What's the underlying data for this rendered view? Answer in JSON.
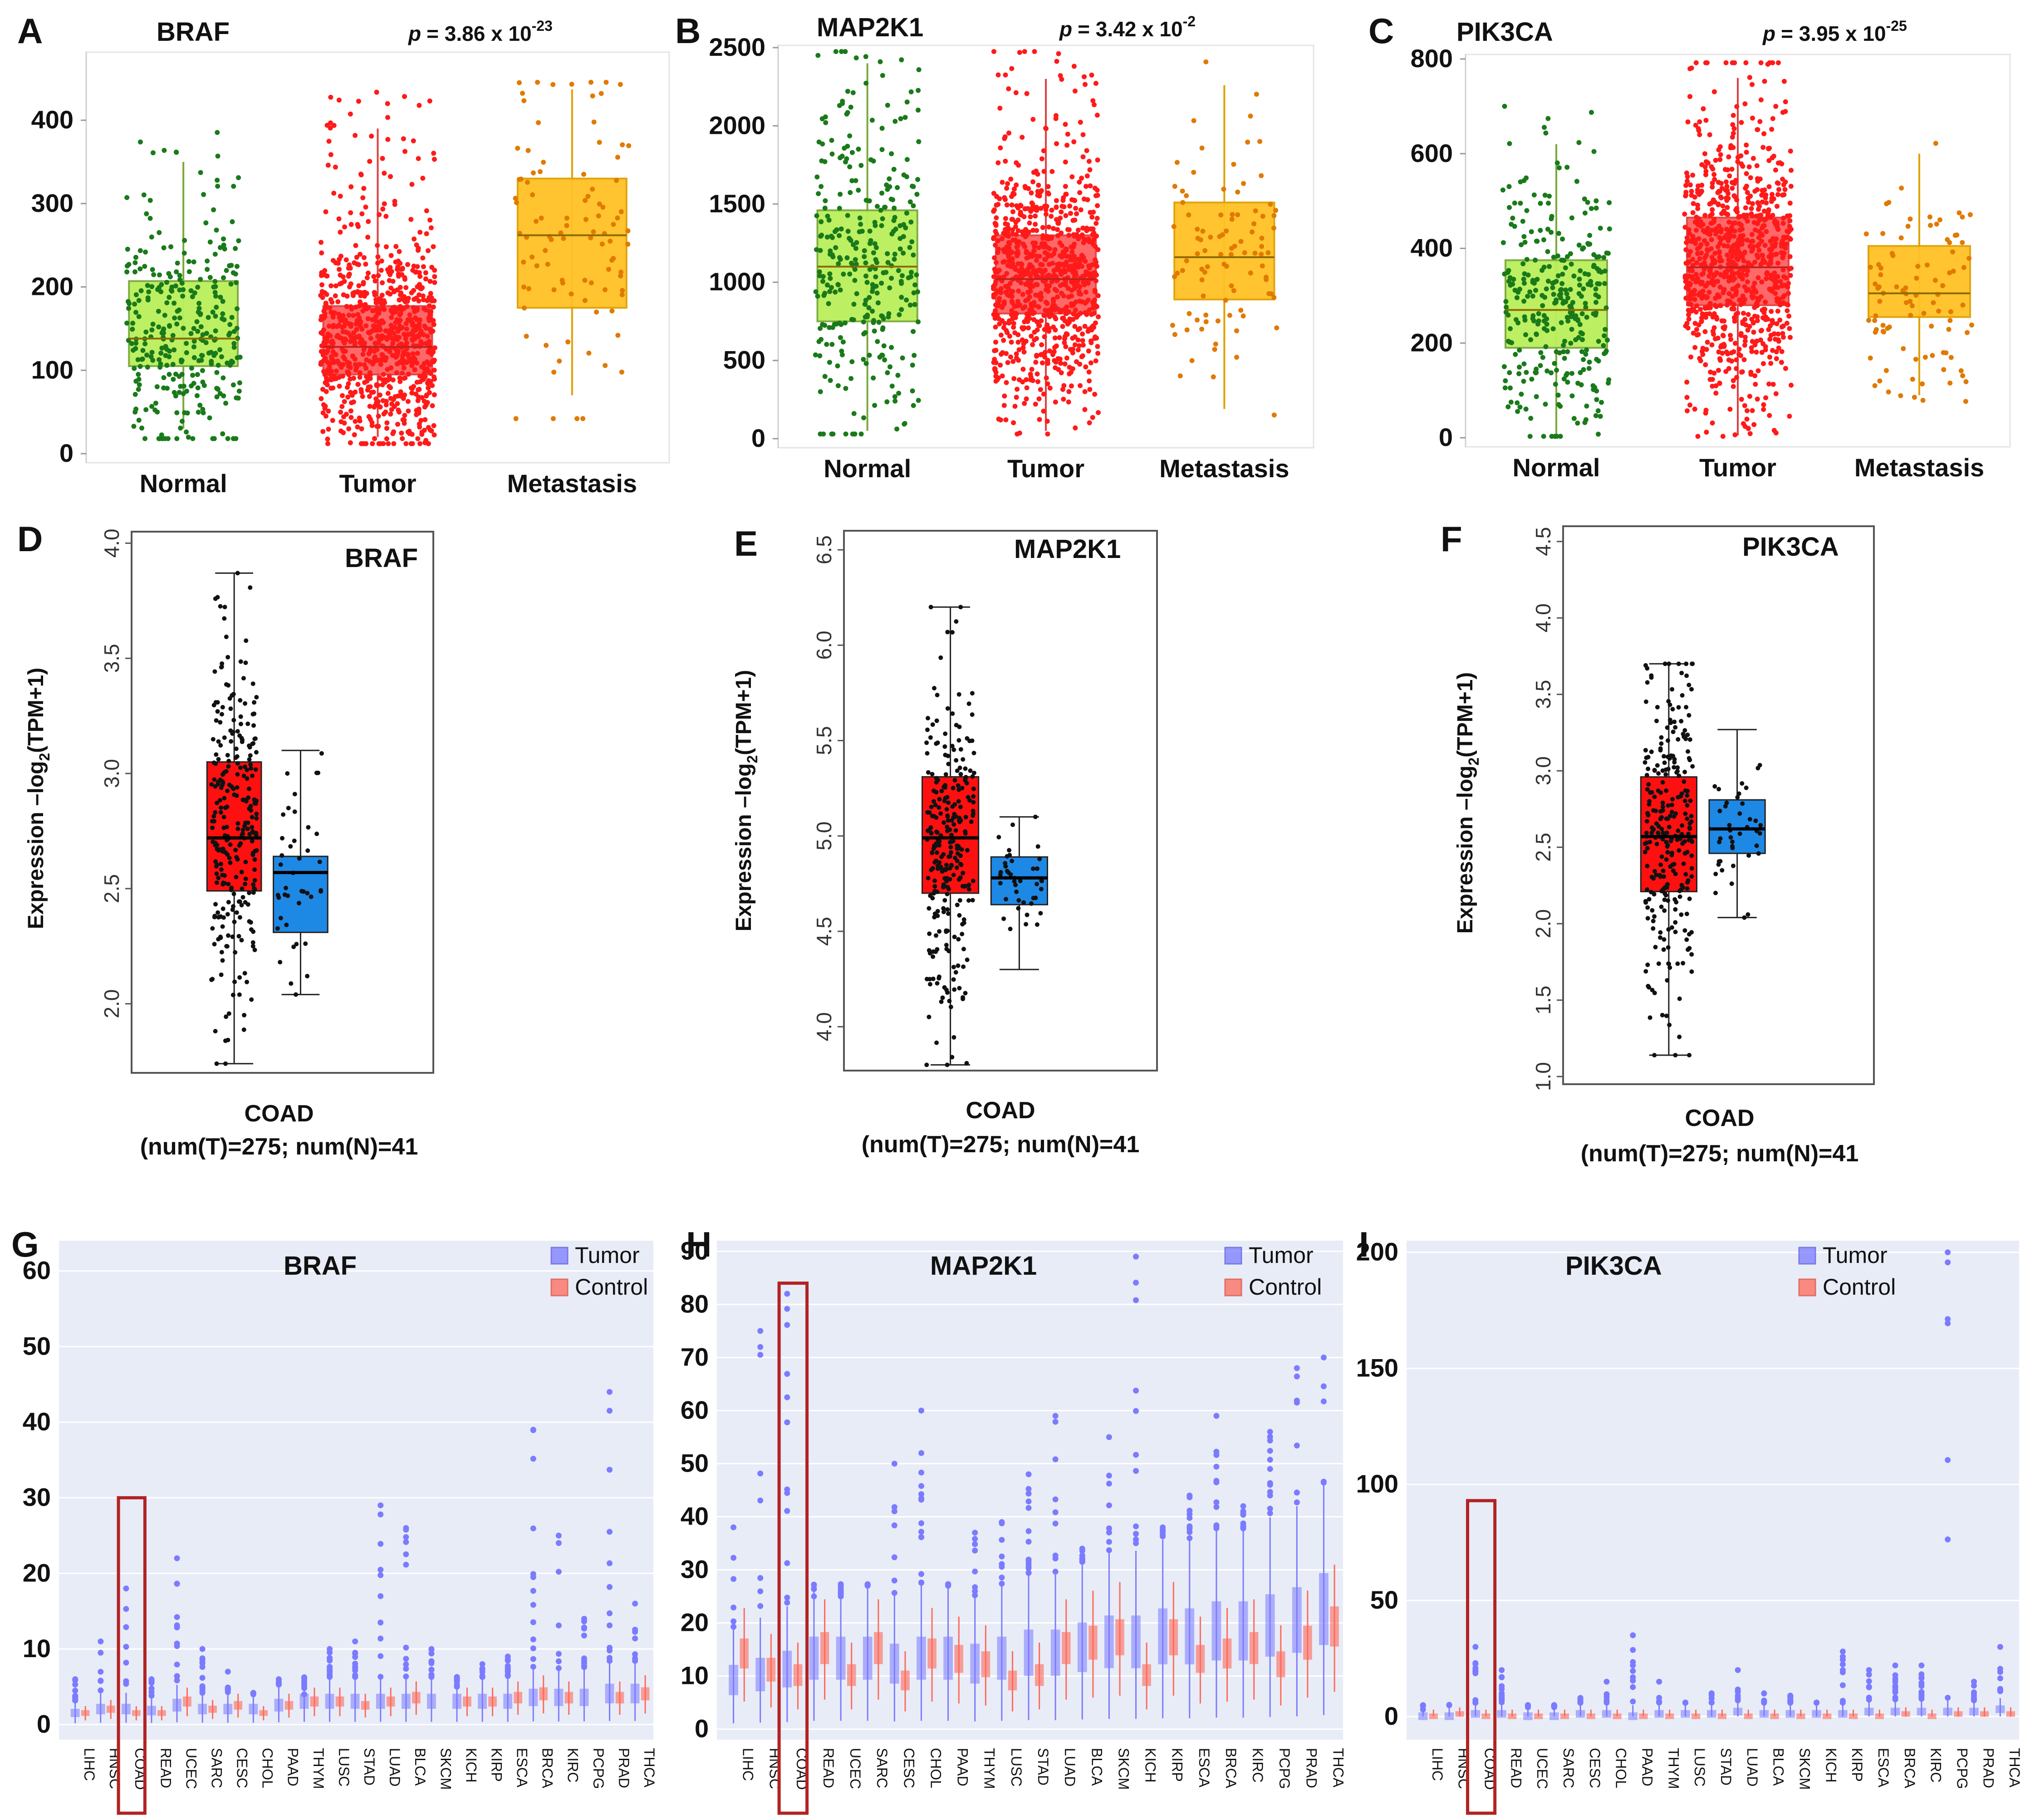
{
  "figure": {
    "colors": {
      "normal_box": "#b9f05a",
      "normal_dots": "#1a7a1a",
      "tumor_box": "#ff6060",
      "tumor_dots": "#ff1a1a",
      "metastasis_box": "#ffc125",
      "metastasis_dots": "#e07a00",
      "gepia_tumor": "#ff1010",
      "gepia_normal": "#1e88e5",
      "pan_tumor": "#7b7bff",
      "pan_control": "#ff6a5a",
      "pan_background": "#e8ecf7",
      "highlight": "#b22222"
    }
  },
  "chart_data": [
    {
      "panel": "A",
      "type": "box",
      "title": "BRAF",
      "p_prefix": "p",
      "p_value": "= 3.86 x 10",
      "p_exponent": "-23",
      "categories": [
        "Normal",
        "Tumor",
        "Metastasis"
      ],
      "ylim": [
        0,
        450
      ],
      "yticks": [
        0,
        100,
        200,
        300,
        400
      ],
      "boxes": [
        {
          "q1": 105,
          "median": 138,
          "q3": 207,
          "lower": 30,
          "upper": 350,
          "n_points": 320
        },
        {
          "q1": 95,
          "median": 128,
          "q3": 177,
          "lower": 20,
          "upper": 390,
          "n_points": 900
        },
        {
          "q1": 175,
          "median": 262,
          "q3": 330,
          "lower": 70,
          "upper": 437,
          "n_points": 95
        }
      ]
    },
    {
      "panel": "B",
      "type": "box",
      "title": "MAP2K1",
      "p_prefix": "p",
      "p_value": "= 3.42 x 10",
      "p_exponent": "-2",
      "categories": [
        "Normal",
        "Tumor",
        "Metastasis"
      ],
      "ylim": [
        0,
        2500
      ],
      "yticks": [
        0,
        500,
        1000,
        1500,
        2000,
        2500
      ],
      "boxes": [
        {
          "q1": 750,
          "median": 1100,
          "q3": 1460,
          "lower": 50,
          "upper": 2400,
          "n_points": 320
        },
        {
          "q1": 800,
          "median": 1020,
          "q3": 1300,
          "lower": 50,
          "upper": 2300,
          "n_points": 900
        },
        {
          "q1": 890,
          "median": 1160,
          "q3": 1510,
          "lower": 190,
          "upper": 2260,
          "n_points": 95
        }
      ]
    },
    {
      "panel": "C",
      "type": "box",
      "title": "PIK3CA",
      "p_prefix": "p",
      "p_value": "= 3.95 x 10",
      "p_exponent": "-25",
      "categories": [
        "Normal",
        "Tumor",
        "Metastasis"
      ],
      "ylim": [
        0,
        800
      ],
      "yticks": [
        0,
        200,
        400,
        600,
        800
      ],
      "boxes": [
        {
          "q1": 190,
          "median": 270,
          "q3": 375,
          "lower": 5,
          "upper": 620,
          "n_points": 320
        },
        {
          "q1": 280,
          "median": 360,
          "q3": 465,
          "lower": 5,
          "upper": 760,
          "n_points": 900
        },
        {
          "q1": 255,
          "median": 305,
          "q3": 405,
          "lower": 90,
          "upper": 600,
          "n_points": 95
        }
      ]
    },
    {
      "panel": "D",
      "type": "box",
      "title": "BRAF",
      "ylabel_main": "Expression –log",
      "ylabel_sub": "2",
      "ylabel_end": "(TPM+1)",
      "xlabel": "COAD",
      "cohort": "(num(T)=275; num(N)=41",
      "ylim": [
        1.7,
        4.05
      ],
      "yticks": [
        "2.0",
        "2.5",
        "3.0",
        "3.5",
        "4.0"
      ],
      "boxes": [
        {
          "group": "Tumor",
          "q1": 2.49,
          "median": 2.72,
          "q3": 3.05,
          "lower": 1.74,
          "upper": 3.87,
          "n_points": 275
        },
        {
          "group": "Normal",
          "q1": 2.31,
          "median": 2.57,
          "q3": 2.64,
          "lower": 2.04,
          "upper": 3.1,
          "n_points": 41
        }
      ]
    },
    {
      "panel": "E",
      "type": "box",
      "title": "MAP2K1",
      "ylabel_main": "Expression –log",
      "ylabel_sub": "2",
      "ylabel_end": "(TPM+1)",
      "xlabel": "COAD",
      "cohort": "(num(T)=275; num(N)=41",
      "ylim": [
        3.77,
        6.6
      ],
      "yticks": [
        "4.0",
        "4.5",
        "5.0",
        "5.5",
        "6.0",
        "6.5"
      ],
      "boxes": [
        {
          "group": "Tumor",
          "q1": 4.7,
          "median": 4.99,
          "q3": 5.31,
          "lower": 3.8,
          "upper": 6.2,
          "n_points": 275
        },
        {
          "group": "Normal",
          "q1": 4.64,
          "median": 4.78,
          "q3": 4.89,
          "lower": 4.3,
          "upper": 5.1,
          "n_points": 41
        }
      ]
    },
    {
      "panel": "F",
      "type": "box",
      "title": "PIK3CA",
      "ylabel_main": "Expression –log",
      "ylabel_sub": "2",
      "ylabel_end": "(TPM+1)",
      "xlabel": "COAD",
      "cohort": "(num(T)=275; num(N)=41",
      "ylim": [
        0.95,
        4.6
      ],
      "yticks": [
        "1.0",
        "1.5",
        "2.0",
        "2.5",
        "3.0",
        "3.5",
        "4.0",
        "4.5"
      ],
      "boxes": [
        {
          "group": "Tumor",
          "q1": 2.21,
          "median": 2.57,
          "q3": 2.96,
          "lower": 1.14,
          "upper": 3.7,
          "n_points": 275
        },
        {
          "group": "Normal",
          "q1": 2.46,
          "median": 2.62,
          "q3": 2.81,
          "lower": 2.04,
          "upper": 3.27,
          "n_points": 41
        }
      ]
    },
    {
      "panel": "G",
      "type": "box",
      "title": "BRAF",
      "legend": [
        "Tumor",
        "Control"
      ],
      "highlight": "COAD",
      "categories": [
        "LIHC",
        "HNSC",
        "COAD",
        "READ",
        "UCEC",
        "SARC",
        "CESC",
        "CHOL",
        "PAAD",
        "THYM",
        "LUSC",
        "STAD",
        "LUAD",
        "BLCA",
        "SKCM",
        "KICH",
        "KIRP",
        "ESCA",
        "BRCA",
        "KIRC",
        "PCPG",
        "PRAD",
        "THCA"
      ],
      "ylim": [
        -2,
        64
      ],
      "yticks": [
        0,
        10,
        20,
        30,
        40,
        50,
        60
      ],
      "tumor_median": [
        1.5,
        2,
        2,
        1.8,
        2.5,
        2,
        2,
        2,
        2.5,
        3,
        3,
        3,
        3,
        3,
        3,
        3,
        3,
        3,
        3.5,
        3.5,
        3.5,
        4,
        4
      ],
      "control_median": [
        1.5,
        2,
        1.5,
        1.5,
        3,
        2,
        2.5,
        1.5,
        2.5,
        3,
        3,
        2.5,
        3,
        3.5,
        0,
        3,
        3,
        3.5,
        4,
        3.5,
        0,
        3.5,
        4
      ],
      "tumor_max": [
        6,
        11,
        18,
        6,
        22,
        10,
        7,
        4,
        6,
        4,
        10,
        11,
        29,
        26,
        10,
        5,
        8,
        9,
        39,
        25,
        14,
        44,
        16
      ]
    },
    {
      "panel": "H",
      "type": "box",
      "title": "MAP2K1",
      "legend": [
        "Tumor",
        "Control"
      ],
      "highlight": "COAD",
      "categories": [
        "LIHC",
        "HNSC",
        "COAD",
        "READ",
        "UCEC",
        "SARC",
        "CESC",
        "CHOL",
        "PAAD",
        "THYM",
        "LUSC",
        "STAD",
        "LUAD",
        "BLCA",
        "SKCM",
        "KICH",
        "KIRP",
        "ESCA",
        "BRCA",
        "KIRC",
        "PCPG",
        "PRAD",
        "THCA"
      ],
      "ylim": [
        -2,
        92
      ],
      "yticks": [
        0,
        10,
        20,
        30,
        40,
        50,
        60,
        70,
        80,
        90
      ],
      "tumor_median": [
        9,
        10,
        11,
        13,
        13,
        13,
        12,
        13,
        13,
        12,
        13,
        14,
        14,
        15,
        16,
        16,
        17,
        17,
        18,
        18,
        19,
        20,
        22
      ],
      "control_median": [
        14,
        11,
        10,
        15,
        10,
        15,
        9,
        14,
        13,
        12,
        9,
        10,
        15,
        16,
        17,
        10,
        17,
        13,
        14,
        15,
        12,
        16,
        19
      ],
      "tumor_max": [
        38,
        75,
        82,
        25,
        25,
        27,
        50,
        60,
        27,
        37,
        39,
        48,
        59,
        34,
        55,
        89,
        38,
        44,
        59,
        42,
        56,
        68,
        70
      ]
    },
    {
      "panel": "I",
      "type": "box",
      "title": "PIK3CA",
      "legend": [
        "Tumor",
        "Control"
      ],
      "highlight": "COAD",
      "categories": [
        "LIHC",
        "HNSC",
        "COAD",
        "READ",
        "UCEC",
        "SARC",
        "CESC",
        "CHOL",
        "PAAD",
        "THYM",
        "LUSC",
        "STAD",
        "LUAD",
        "BLCA",
        "SKCM",
        "KICH",
        "KIRP",
        "ESCA",
        "BRCA",
        "KIRC",
        "PCPG",
        "PRAD",
        "THCA"
      ],
      "ylim": [
        -10,
        205
      ],
      "yticks": [
        0,
        50,
        100,
        150,
        200
      ],
      "tumor_median": [
        0,
        0,
        1,
        1,
        0,
        0,
        1,
        1,
        0,
        1,
        1,
        1,
        2,
        1,
        1,
        1,
        1,
        2,
        2,
        2,
        2,
        2,
        3
      ],
      "control_median": [
        0,
        1,
        0,
        0,
        0,
        0,
        0,
        0,
        0,
        0,
        0,
        0,
        0,
        0,
        0,
        0,
        0,
        0,
        1,
        0,
        1,
        1,
        1
      ],
      "tumor_max": [
        3,
        5,
        30,
        20,
        4,
        4,
        8,
        15,
        35,
        15,
        6,
        10,
        20,
        10,
        9,
        6,
        28,
        20,
        22,
        22,
        200,
        15,
        30
      ]
    }
  ]
}
